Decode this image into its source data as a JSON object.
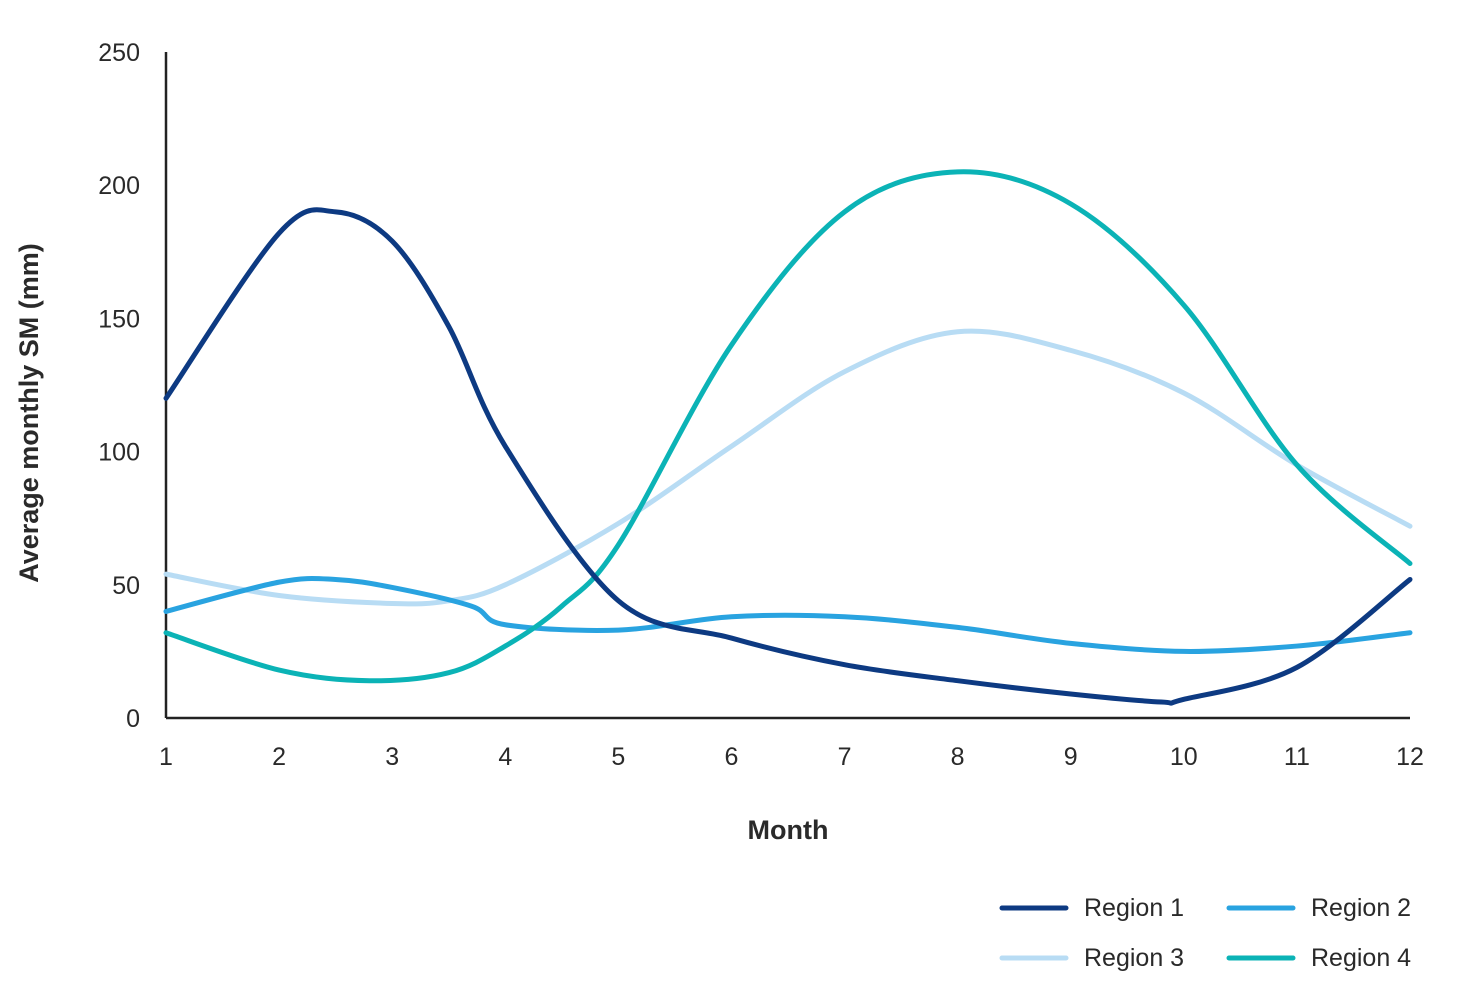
{
  "chart_data": {
    "type": "line",
    "title": "",
    "xlabel": "Month",
    "ylabel": "Average monthly SM (mm)",
    "x": [
      1,
      2,
      3,
      4,
      5,
      6,
      7,
      8,
      9,
      10,
      11,
      12
    ],
    "x_tick_labels": [
      "1",
      "2",
      "3",
      "4",
      "5",
      "6",
      "7",
      "8",
      "9",
      "10",
      "11",
      "12"
    ],
    "y_ticks": [
      0,
      50,
      100,
      150,
      200,
      250
    ],
    "y_tick_labels": [
      "0",
      "50",
      "100",
      "150",
      "200",
      "250"
    ],
    "xlim": [
      1,
      12
    ],
    "ylim": [
      0,
      250
    ],
    "grid": false,
    "legend_position": "bottom-right",
    "series": [
      {
        "name": "Region 1",
        "color": "#0d3a82",
        "x": [
          1,
          2,
          2.5,
          3,
          3.5,
          4,
          5,
          6,
          7,
          8,
          9,
          9.8,
          10,
          11,
          12
        ],
        "values": [
          120,
          182,
          190,
          179,
          147,
          102,
          44,
          30,
          20,
          14,
          9,
          6,
          7,
          19,
          52
        ]
      },
      {
        "name": "Region 2",
        "color": "#29a3e0",
        "x": [
          1,
          2,
          2.5,
          3,
          3.7,
          4,
          5,
          6,
          7,
          8,
          9,
          10,
          11,
          12
        ],
        "values": [
          40,
          51,
          52,
          49,
          42,
          35,
          33,
          38,
          38,
          34,
          28,
          25,
          27,
          32
        ]
      },
      {
        "name": "Region 3",
        "color": "#b8dcf4",
        "x": [
          1,
          2,
          3,
          3.5,
          4,
          5,
          6,
          7,
          8,
          9,
          10,
          11,
          12
        ],
        "values": [
          54,
          46,
          43,
          44,
          50,
          73,
          102,
          130,
          145,
          138,
          122,
          95,
          72
        ]
      },
      {
        "name": "Region 4",
        "color": "#0bb3b6",
        "x": [
          1,
          2,
          2.8,
          3.5,
          4,
          4.5,
          5,
          6,
          7,
          8,
          9,
          10,
          11,
          12
        ],
        "values": [
          32,
          18,
          14,
          17,
          27,
          42,
          65,
          140,
          190,
          205,
          193,
          155,
          95,
          58
        ]
      }
    ]
  }
}
